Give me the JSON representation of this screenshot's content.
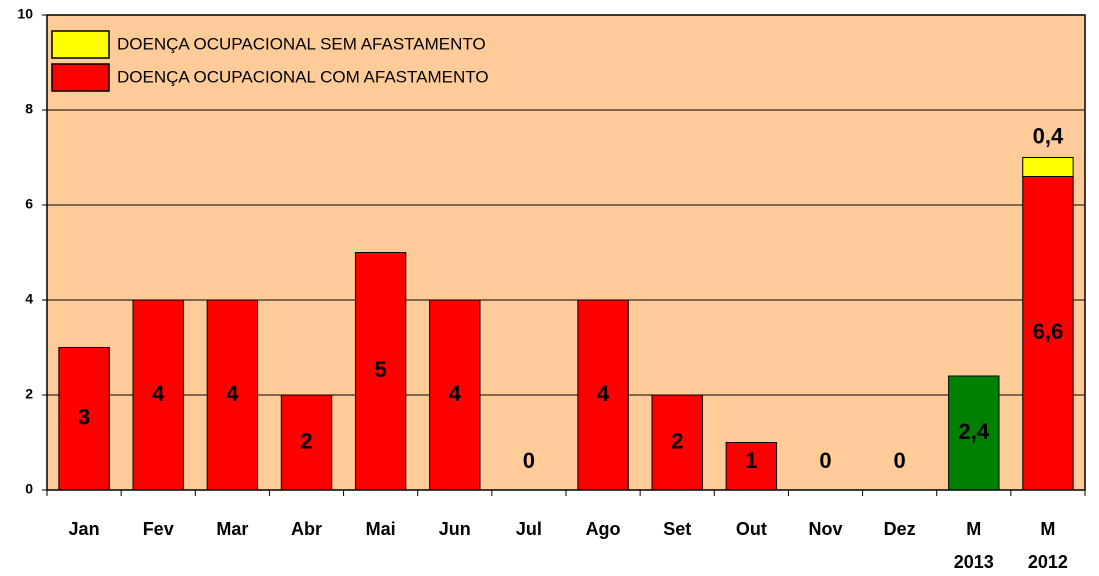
{
  "chart_data": {
    "type": "stacked_bar",
    "categories": [
      "Jan",
      "Fev",
      "Mar",
      "Abr",
      "Mai",
      "Jun",
      "Jul",
      "Ago",
      "Set",
      "Out",
      "Nov",
      "Dez",
      [
        "M",
        "2013"
      ],
      [
        "M",
        "2012"
      ]
    ],
    "series": [
      {
        "name": "DOENÇA OCUPACIONAL COM AFASTAMENTO",
        "color": "#ff0000",
        "point_colors": [
          "#ff0000",
          "#ff0000",
          "#ff0000",
          "#ff0000",
          "#ff0000",
          "#ff0000",
          "#ff0000",
          "#ff0000",
          "#ff0000",
          "#ff0000",
          "#ff0000",
          "#ff0000",
          "#008000",
          "#ff0000"
        ],
        "values": [
          3,
          4,
          4,
          2,
          5,
          4,
          0,
          4,
          2,
          1,
          0,
          0,
          2.4,
          6.6
        ],
        "value_labels": [
          "3",
          "4",
          "4",
          "2",
          "5",
          "4",
          "0",
          "4",
          "2",
          "1",
          "0",
          "0",
          "2,4",
          "6,6"
        ]
      },
      {
        "name": "DOENÇA OCUPACIONAL SEM AFASTAMENTO",
        "color": "#ffff00",
        "values": [
          null,
          null,
          null,
          null,
          null,
          null,
          null,
          null,
          null,
          null,
          null,
          null,
          null,
          0.4
        ],
        "value_labels": [
          null,
          null,
          null,
          null,
          null,
          null,
          null,
          null,
          null,
          null,
          null,
          null,
          null,
          "0,4"
        ]
      }
    ],
    "ylim": [
      0,
      10
    ],
    "yticks": [
      0,
      2,
      4,
      6,
      8,
      10
    ],
    "grid": true,
    "legend": "top-left",
    "background": "#ffcc99"
  }
}
